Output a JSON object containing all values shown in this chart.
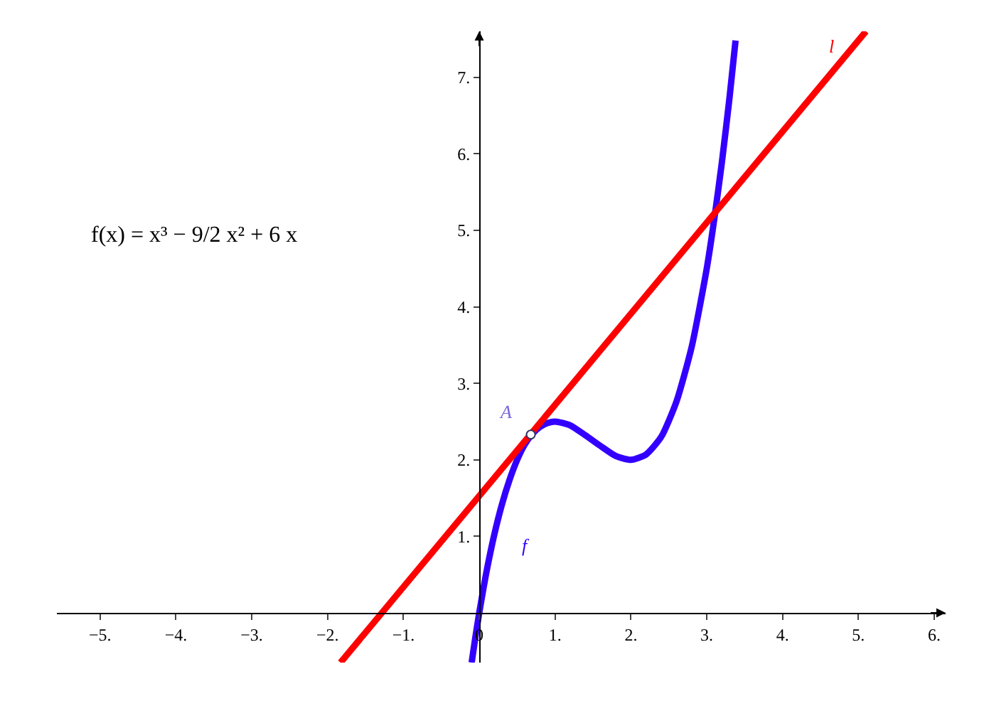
{
  "chart_data": {
    "type": "line",
    "xlim": [
      -5.57,
      6.15
    ],
    "ylim": [
      -0.65,
      7.6
    ],
    "xticks": [
      {
        "value": -5,
        "label": "−5."
      },
      {
        "value": -4,
        "label": "−4."
      },
      {
        "value": -3,
        "label": "−3."
      },
      {
        "value": -2,
        "label": "−2."
      },
      {
        "value": -1,
        "label": "−1."
      },
      {
        "value": 0,
        "label": "0"
      },
      {
        "value": 1,
        "label": "1."
      },
      {
        "value": 2,
        "label": "2."
      },
      {
        "value": 3,
        "label": "3."
      },
      {
        "value": 4,
        "label": "4."
      },
      {
        "value": 5,
        "label": "5."
      },
      {
        "value": 6,
        "label": "6."
      }
    ],
    "yticks": [
      {
        "value": 1,
        "label": "1."
      },
      {
        "value": 2,
        "label": "2."
      },
      {
        "value": 3,
        "label": "3."
      },
      {
        "value": 4,
        "label": "4."
      },
      {
        "value": 5,
        "label": "5."
      },
      {
        "value": 6,
        "label": "6."
      },
      {
        "value": 7,
        "label": "7."
      }
    ],
    "series": [
      {
        "name": "f",
        "color": "#3300ff",
        "x": [
          -0.1,
          -0.05,
          0,
          0.1,
          0.2,
          0.3,
          0.4,
          0.5,
          0.6,
          0.7,
          0.8,
          0.9,
          1.0,
          1.2,
          1.4,
          1.6,
          1.8,
          2.0,
          2.2,
          2.4,
          2.6,
          2.8,
          3.0,
          3.1,
          3.2,
          3.3,
          3.38
        ],
        "values": [
          -0.65,
          -0.31,
          0,
          0.56,
          1.03,
          1.42,
          1.74,
          2.0,
          2.2,
          2.34,
          2.43,
          2.48,
          2.5,
          2.45,
          2.32,
          2.18,
          2.05,
          2.0,
          2.07,
          2.3,
          2.76,
          3.47,
          4.5,
          5.15,
          5.89,
          6.73,
          7.48
        ]
      },
      {
        "name": "l",
        "color": "#ff0000",
        "x": [
          -1.83,
          5.1
        ],
        "values": [
          -0.65,
          7.6
        ]
      },
      {
        "name": "A",
        "type": "scatter",
        "marker": "circle",
        "color": "#ffffff",
        "x": [
          0.68
        ],
        "values": [
          2.33
        ]
      }
    ],
    "annotations": [
      "f(x) = x³ − 9/2 x² + 6 x"
    ],
    "grid": false
  }
}
